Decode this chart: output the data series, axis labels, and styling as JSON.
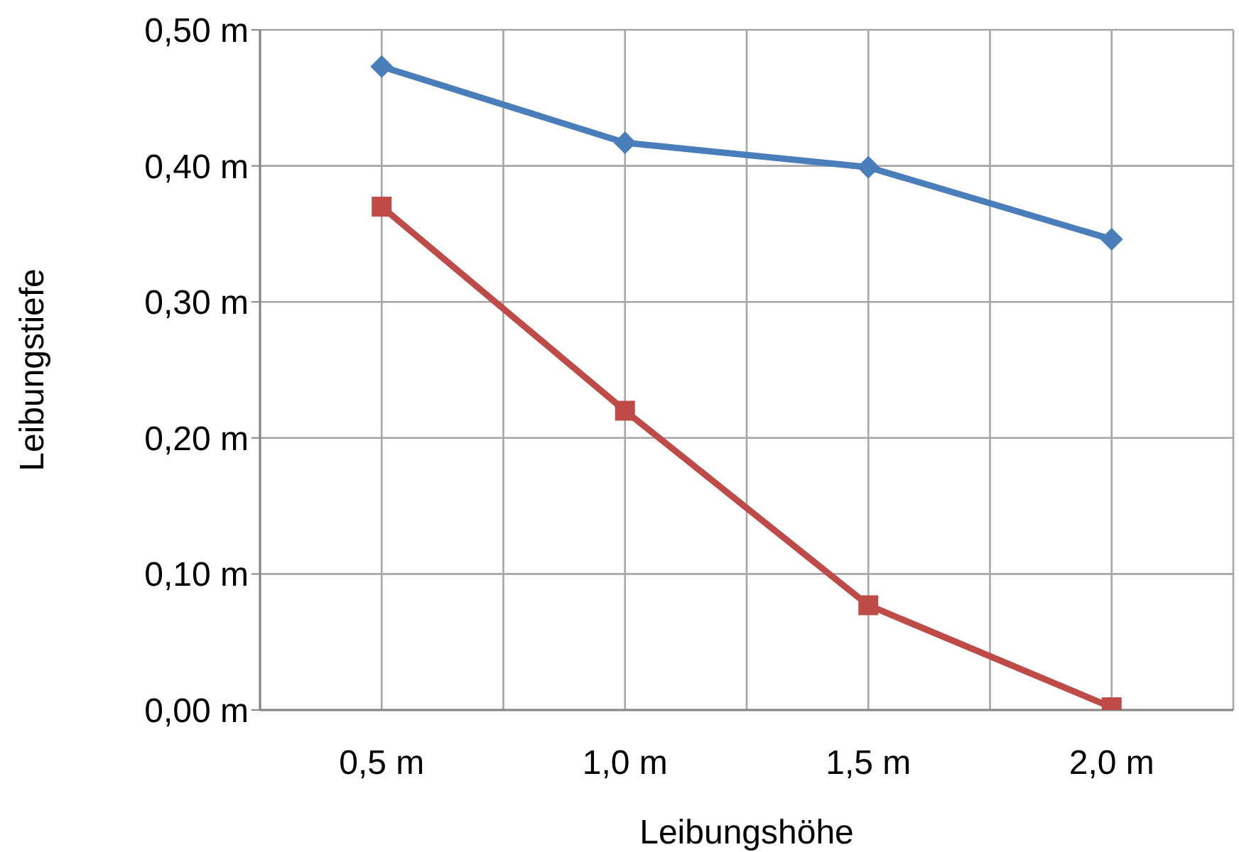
{
  "chart_data": {
    "type": "line",
    "xlabel": "Leibungshöhe",
    "ylabel": "Leibungstiefe",
    "categories": [
      "0,5 m",
      "1,0 m",
      "1,5 m",
      "2,0 m"
    ],
    "series": [
      {
        "color": "#4a7ebb",
        "marker": "diamond",
        "values": [
          0.473,
          0.417,
          0.399,
          0.346
        ]
      },
      {
        "color": "#be4b48",
        "marker": "square",
        "values": [
          0.37,
          0.22,
          0.077,
          0.002
        ]
      }
    ],
    "ylim": [
      0,
      0.5
    ],
    "yticks": [
      {
        "value": 0,
        "label": "0,00 m"
      },
      {
        "value": 0.1,
        "label": "0,10 m"
      },
      {
        "value": 0.2,
        "label": "0,20 m"
      },
      {
        "value": 0.3,
        "label": "0,30 m"
      },
      {
        "value": 0.4,
        "label": "0,40 m"
      },
      {
        "value": 0.5,
        "label": "0,50 m"
      }
    ],
    "grid": true,
    "legend": false,
    "line_style": "solid"
  }
}
